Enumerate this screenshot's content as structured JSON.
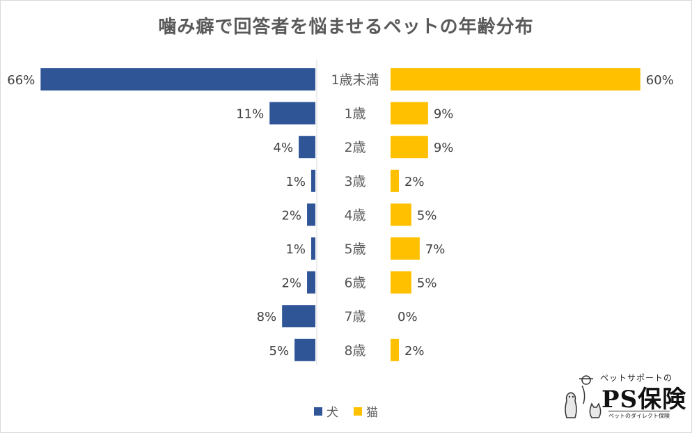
{
  "chart_data": {
    "type": "bar",
    "orientation": "horizontal-butterfly",
    "title": "噛み癖で回答者を悩ませるペットの年齢分布",
    "categories": [
      "1歳未満",
      "1歳",
      "2歳",
      "3歳",
      "4歳",
      "5歳",
      "6歳",
      "7歳",
      "8歳"
    ],
    "series": [
      {
        "name": "犬",
        "color": "#2f5597",
        "side": "left",
        "values": [
          66,
          11,
          4,
          1,
          2,
          1,
          2,
          8,
          5
        ],
        "labels": [
          "66%",
          "11%",
          "4%",
          "1%",
          "2%",
          "1%",
          "2%",
          "8%",
          "5%"
        ]
      },
      {
        "name": "猫",
        "color": "#ffc000",
        "side": "right",
        "values": [
          60,
          9,
          9,
          2,
          5,
          7,
          5,
          0,
          2
        ],
        "labels": [
          "60%",
          "9%",
          "9%",
          "2%",
          "5%",
          "7%",
          "5%",
          "0%",
          "2%"
        ]
      }
    ],
    "value_unit": "%",
    "legend": "bottom-center",
    "grid": false
  },
  "logo": {
    "top_text": "ペットサポートの",
    "main_text": "PS保険",
    "sub_text": "ペットのダイレクト保険",
    "icon": "dog-and-cat-illustration"
  }
}
